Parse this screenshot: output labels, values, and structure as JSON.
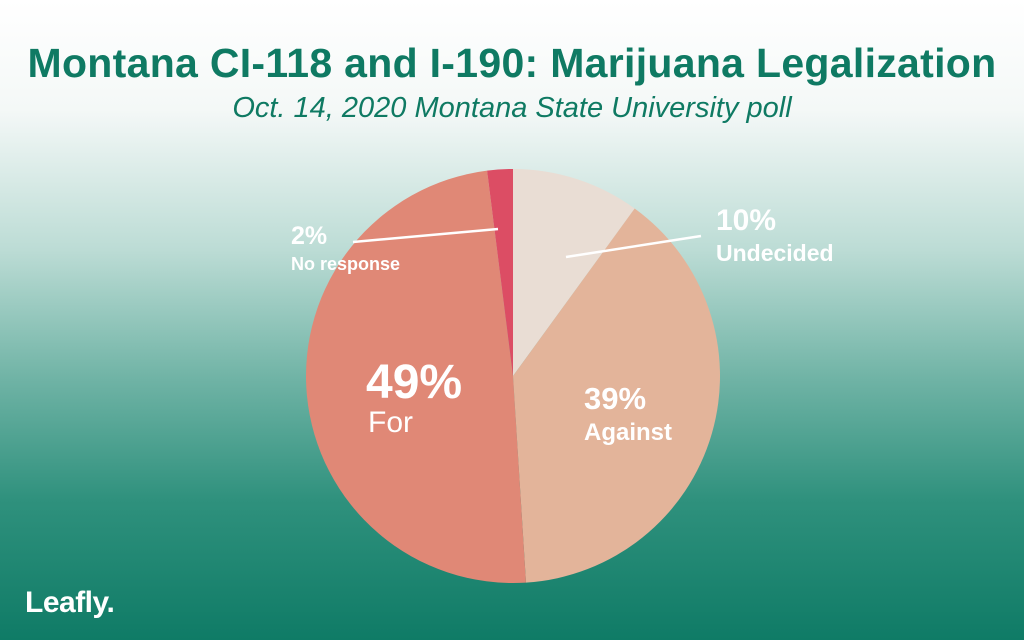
{
  "header": {
    "title": "Montana CI-118 and I-190: Marijuana Legalization",
    "subtitle": "Oct. 14, 2020 Montana State University poll"
  },
  "brand": {
    "logo_text": "Leafly."
  },
  "chart_data": {
    "type": "pie",
    "start": "top",
    "direction": "clockwise",
    "slices": [
      {
        "label": "Undecided",
        "value": 10,
        "value_label": "10%",
        "color": "#e9ddd4"
      },
      {
        "label": "Against",
        "value": 39,
        "value_label": "39%",
        "color": "#e3b49a"
      },
      {
        "label": "For",
        "value": 49,
        "value_label": "49%",
        "color": "#e08876"
      },
      {
        "label": "No response",
        "value": 2,
        "value_label": "2%",
        "color": "#dc4d64"
      }
    ]
  }
}
